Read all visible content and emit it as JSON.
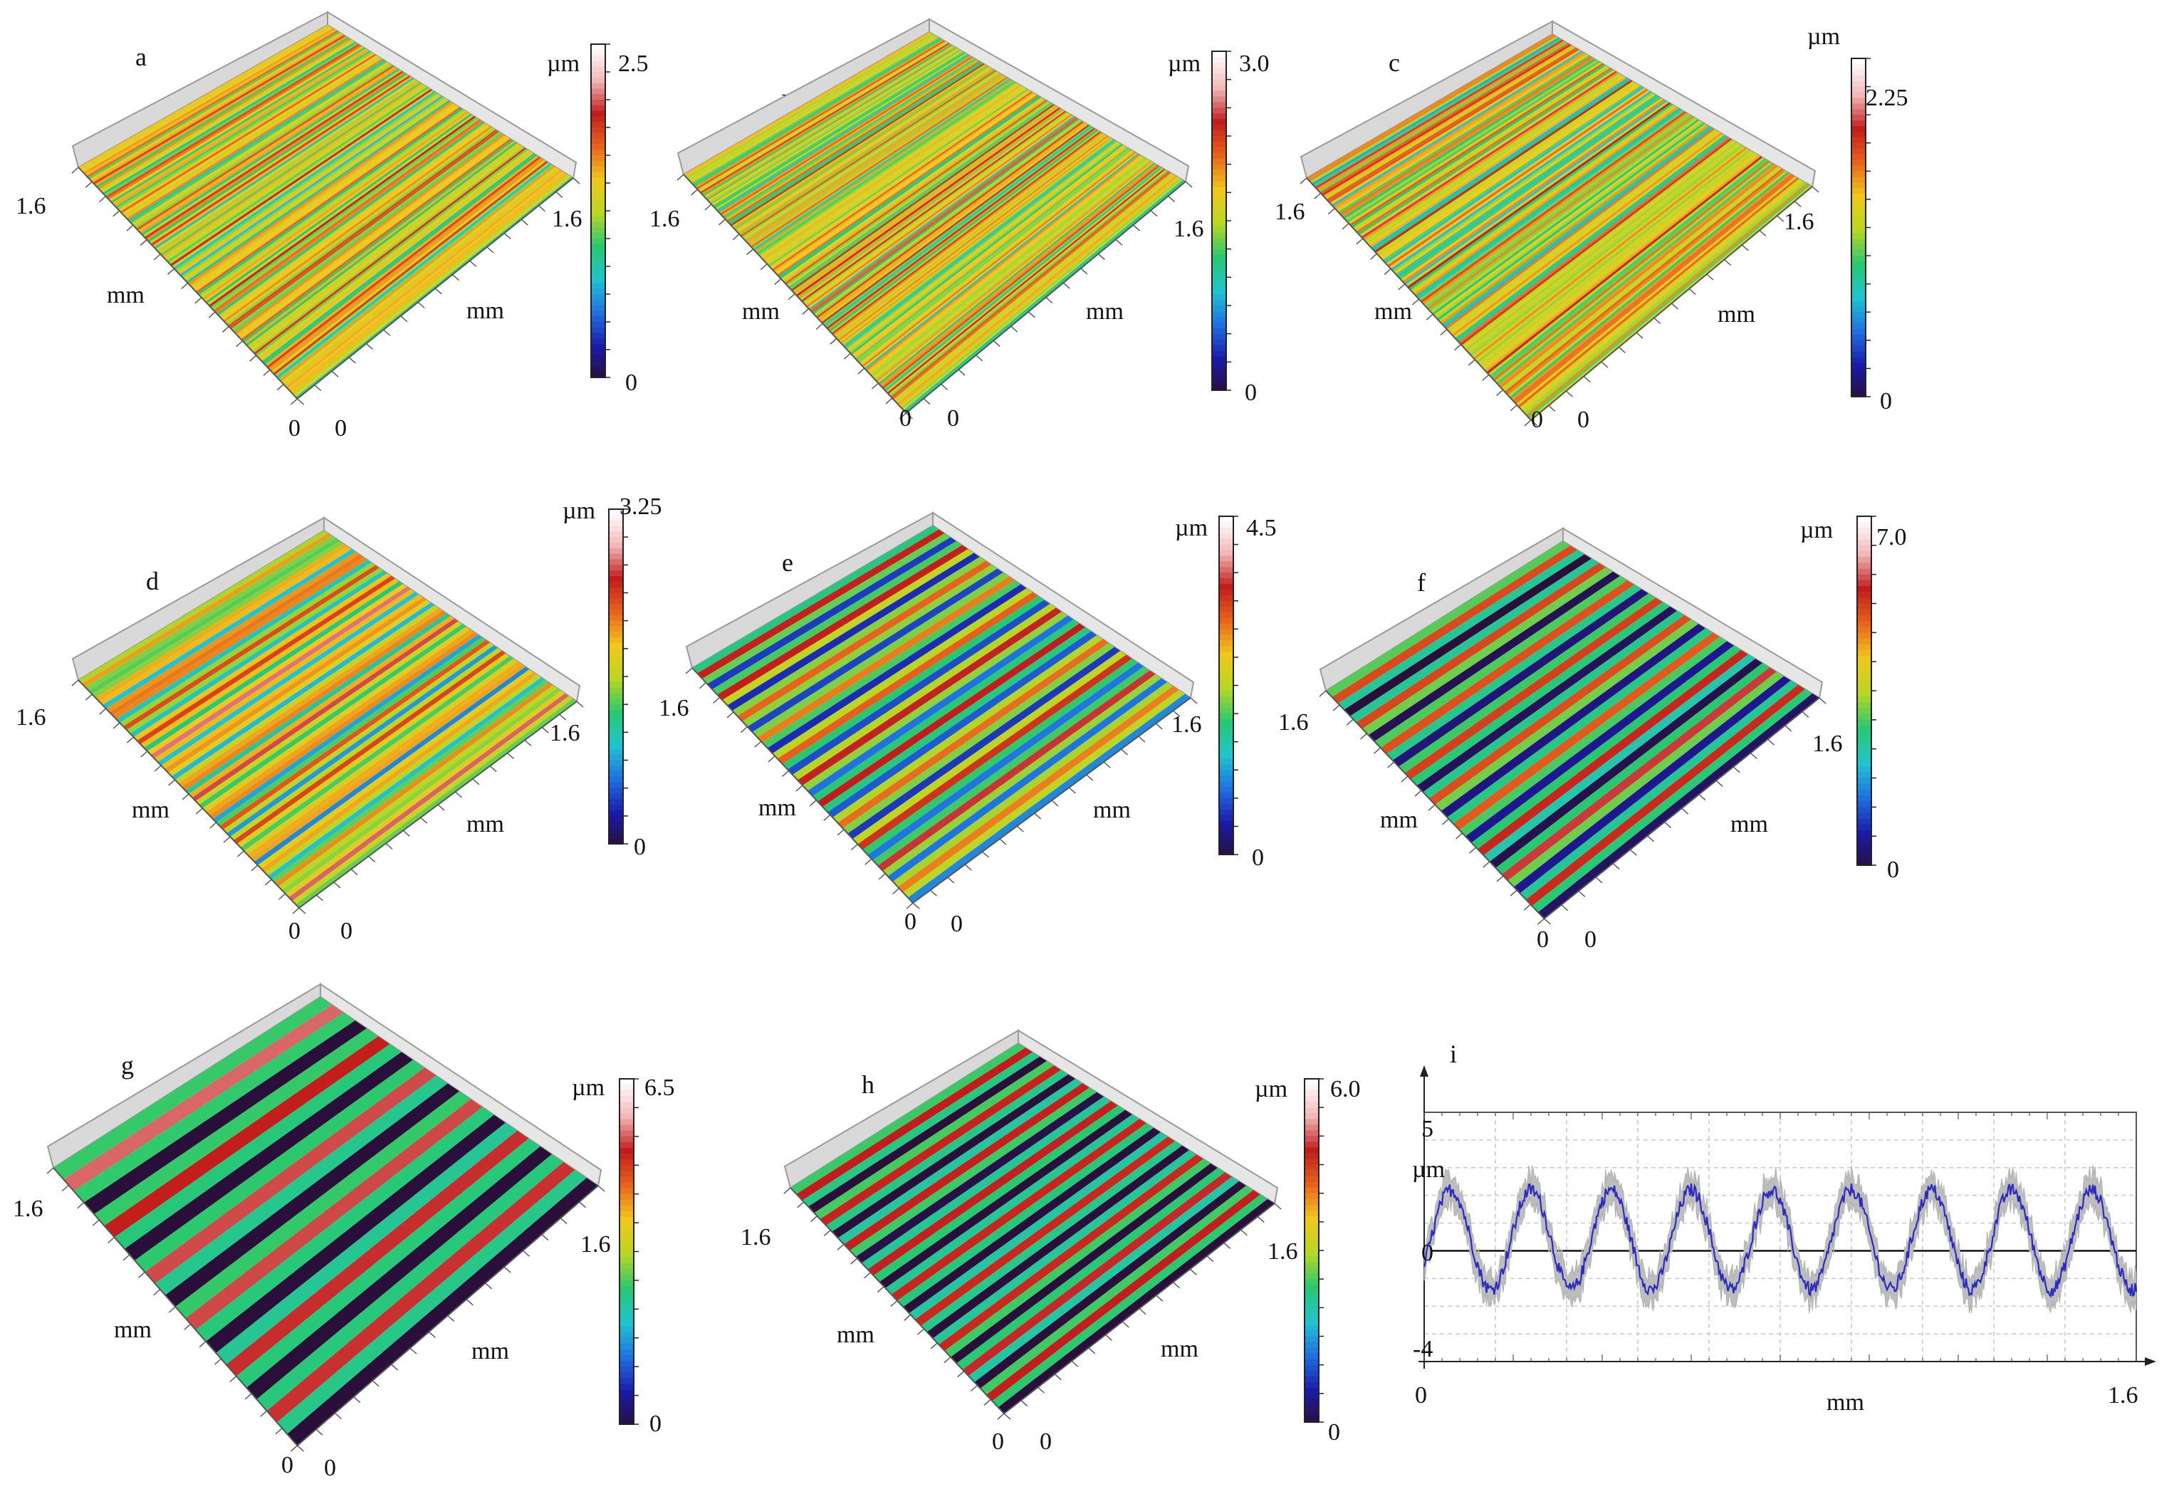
{
  "colormap": [
    "#2a0f3a",
    "#1a1aa8",
    "#1f6fe0",
    "#21c3d0",
    "#28c870",
    "#b8d624",
    "#f0c81c",
    "#e8641c",
    "#c21c1c",
    "#f2b8b8",
    "#ffffff"
  ],
  "chart_data": {
    "type": "surface-grid",
    "panels": [
      {
        "label": "a",
        "zmax": "2.5",
        "zmin": "0",
        "unit": "µm",
        "axis_max": "1.6",
        "axis_min": "0",
        "axis_unit": "mm",
        "stripes": 34,
        "amplitude": 0.08,
        "bias": 0.55,
        "noise": 0.35
      },
      {
        "label": "b",
        "zmax": "3.0",
        "zmin": "0",
        "unit": "µm",
        "axis_max": "1.6",
        "axis_min": "0",
        "axis_unit": "mm",
        "stripes": 44,
        "amplitude": 0.08,
        "bias": 0.55,
        "noise": 0.35
      },
      {
        "label": "c",
        "zmax": "2.25",
        "zmin": "0",
        "unit": "µm",
        "axis_max": "1.6",
        "axis_min": "0",
        "axis_unit": "mm",
        "stripes": 34,
        "amplitude": 0.12,
        "bias": 0.55,
        "noise": 0.32
      },
      {
        "label": "d",
        "zmax": "3.25",
        "zmin": "0",
        "unit": "µm",
        "axis_max": "1.6",
        "axis_min": "0",
        "axis_unit": "mm",
        "stripes": 16,
        "amplitude": 0.2,
        "bias": 0.55,
        "noise": 0.25
      },
      {
        "label": "e",
        "zmax": "4.5",
        "zmin": "0",
        "unit": "µm",
        "axis_max": "1.6",
        "axis_min": "0",
        "axis_unit": "mm",
        "stripes": 11,
        "amplitude": 0.3,
        "bias": 0.45,
        "noise": 0.16
      },
      {
        "label": "f",
        "zmax": "7.0",
        "zmin": "0",
        "unit": "µm",
        "axis_max": "1.6",
        "axis_min": "0",
        "axis_unit": "mm",
        "stripes": 9,
        "amplitude": 0.36,
        "bias": 0.4,
        "noise": 0.12
      },
      {
        "label": "g",
        "zmax": "6.5",
        "zmin": "0",
        "unit": "µm",
        "axis_max": "1.6",
        "axis_min": "0",
        "axis_unit": "mm",
        "stripes": 6,
        "amplitude": 0.44,
        "bias": 0.38,
        "noise": 0.06
      },
      {
        "label": "h",
        "zmax": "6.0",
        "zmin": "0",
        "unit": "µm",
        "axis_max": "1.6",
        "axis_min": "0",
        "axis_unit": "mm",
        "stripes": 9,
        "amplitude": 0.4,
        "bias": 0.38,
        "noise": 0.08
      }
    ],
    "profile": {
      "label": "i",
      "type": "line",
      "xlabel": "mm",
      "ylabel": "µm",
      "xlim": [
        0,
        1.6
      ],
      "ylim": [
        -4,
        5
      ],
      "xticks": [
        "0",
        "1.6"
      ],
      "yticks": [
        "5",
        "0",
        "-4"
      ],
      "period_mm": 0.18,
      "peak_um": 2.2,
      "trough_um": -1.4,
      "envelope_um": 0.55
    }
  }
}
